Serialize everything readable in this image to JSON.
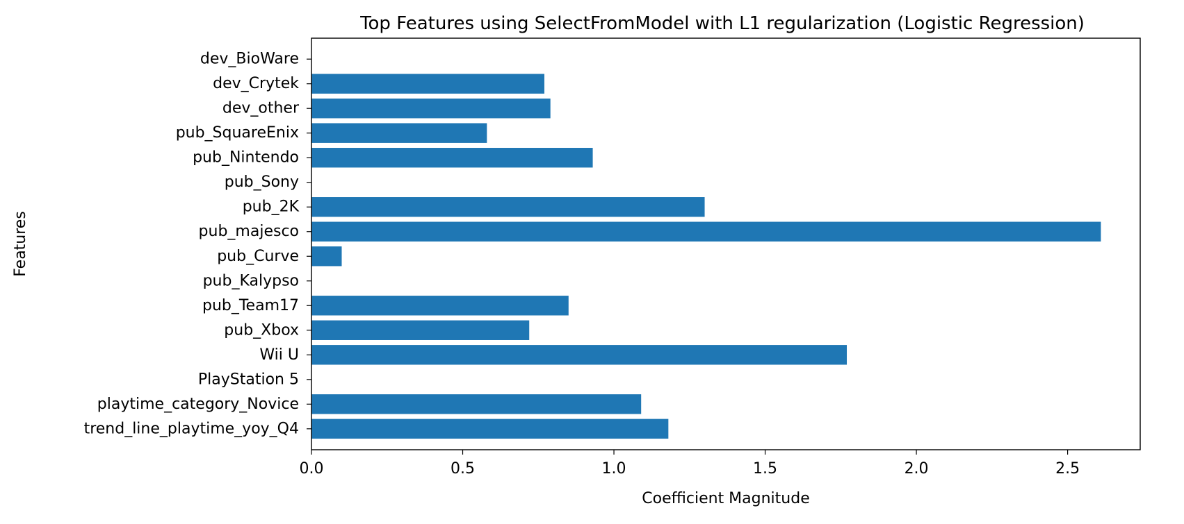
{
  "chart_data": {
    "type": "bar",
    "orientation": "horizontal",
    "title": "Top Features using SelectFromModel with L1 regularization (Logistic Regression)",
    "xlabel": "Coefficient Magnitude",
    "ylabel": "Features",
    "xlim": [
      0,
      2.74
    ],
    "xticks": [
      "0.0",
      "0.5",
      "1.0",
      "1.5",
      "2.0",
      "2.5"
    ],
    "xtick_values": [
      0,
      0.5,
      1.0,
      1.5,
      2.0,
      2.5
    ],
    "grid": false,
    "bar_color": "#1f77b4",
    "categories": [
      "dev_BioWare",
      "dev_Crytek",
      "dev_other",
      "pub_SquareEnix",
      "pub_Nintendo",
      "pub_Sony",
      "pub_2K",
      "pub_majesco",
      "pub_Curve",
      "pub_Kalypso",
      "pub_Team17",
      "pub_Xbox",
      "Wii U",
      "PlayStation 5",
      "playtime_category_Novice",
      "trend_line_playtime_yoy_Q4"
    ],
    "values": [
      0,
      0.77,
      0.79,
      0.58,
      0.93,
      0,
      1.3,
      2.61,
      0.1,
      0,
      0.85,
      0.72,
      1.77,
      0,
      1.09,
      1.18
    ]
  }
}
